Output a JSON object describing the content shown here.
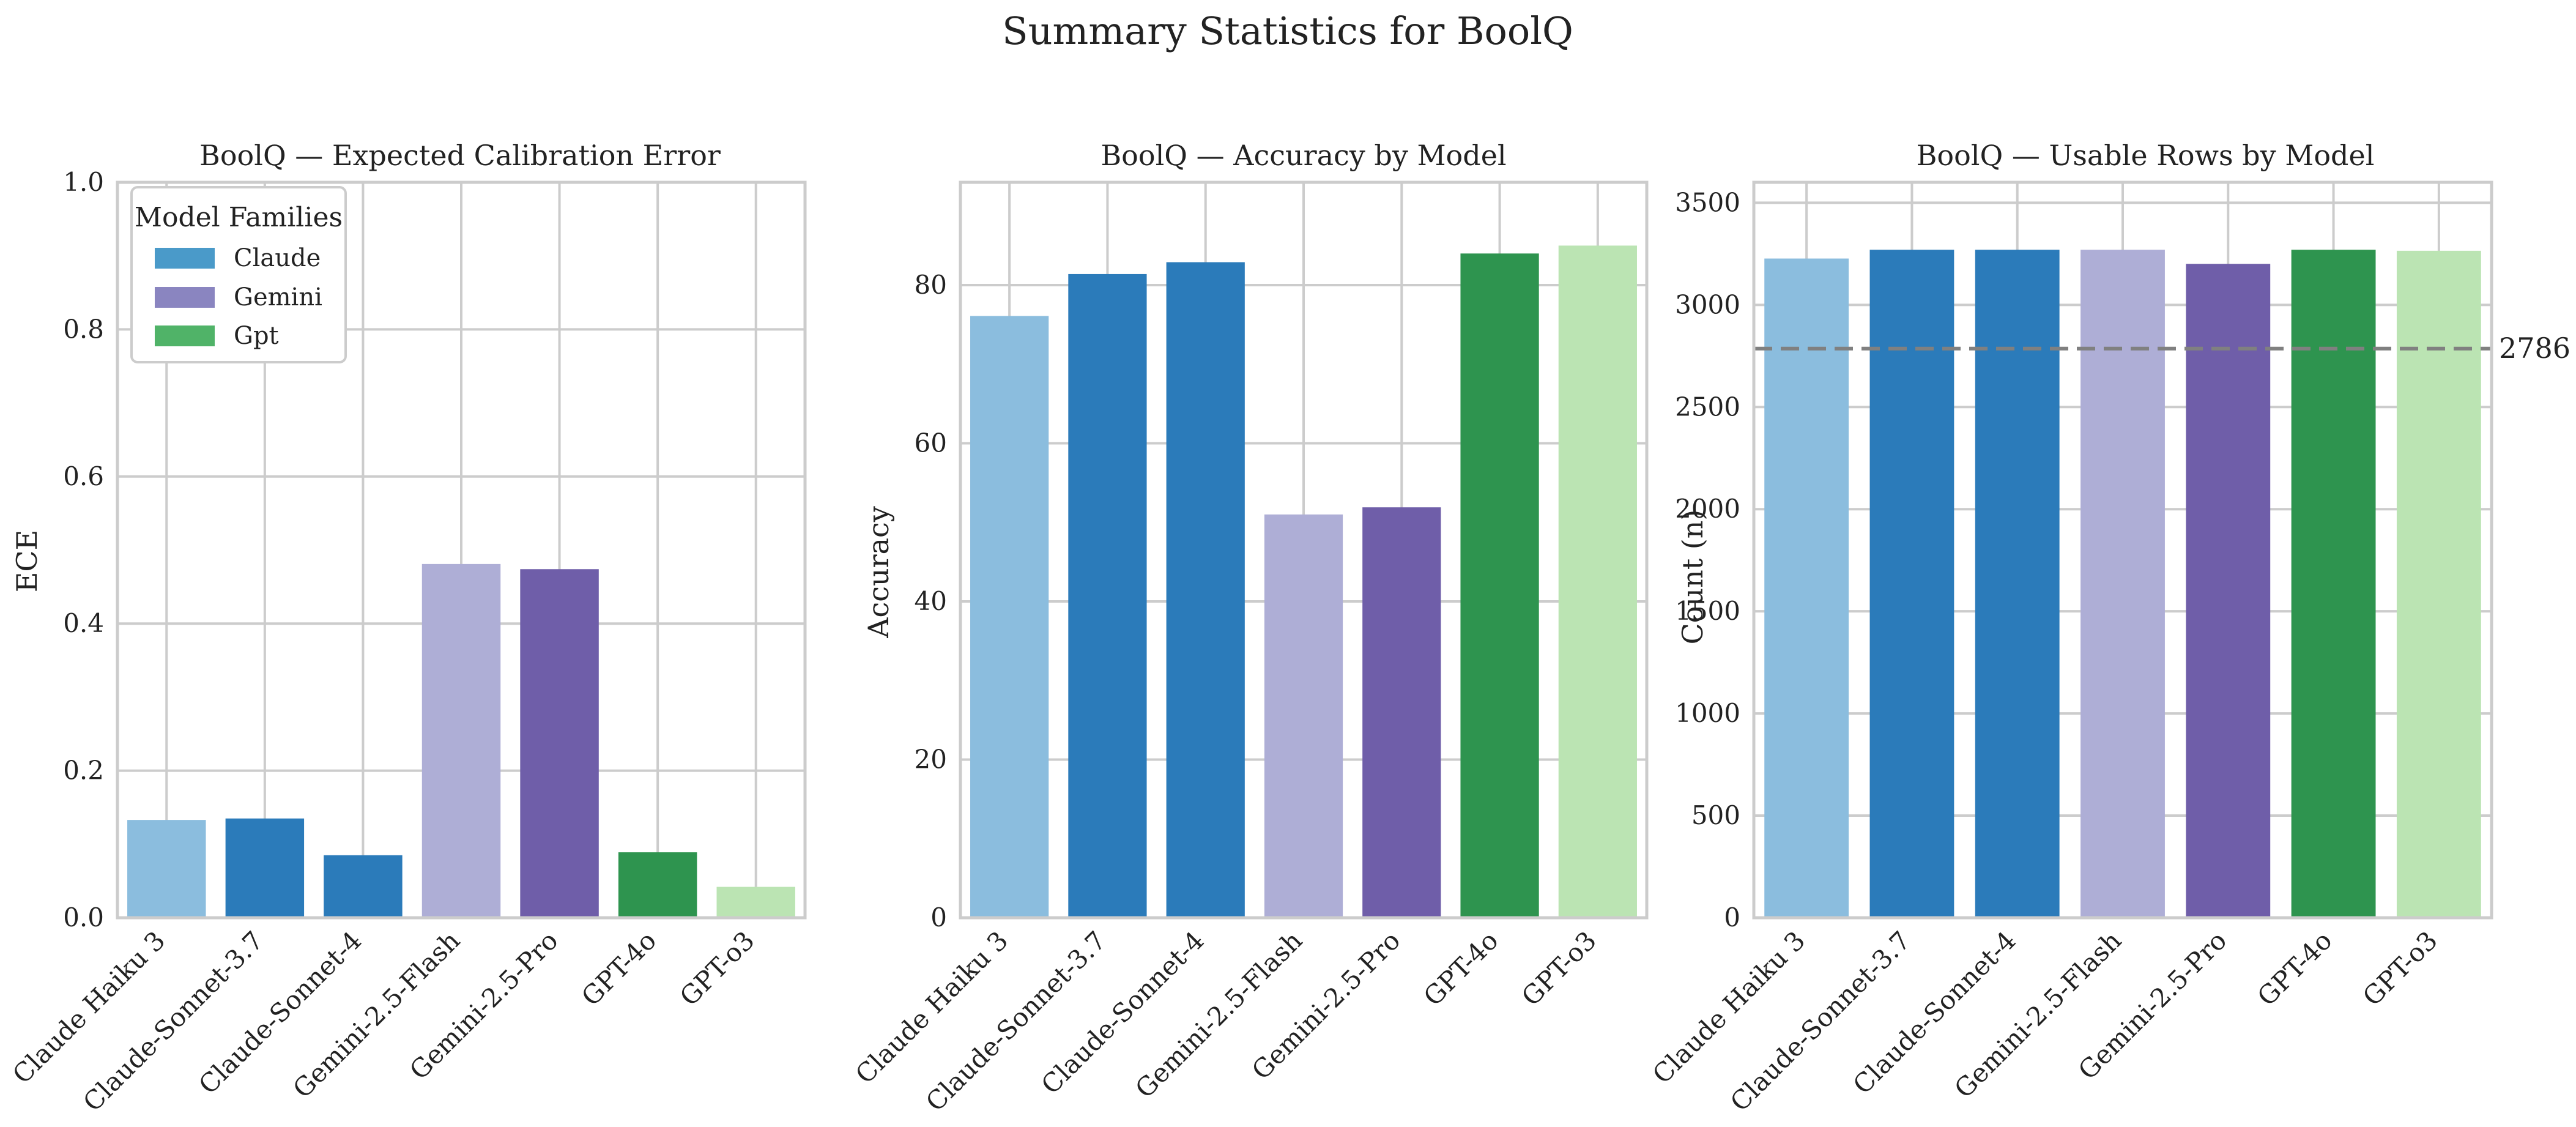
{
  "figure": {
    "title": "Summary Statistics for BoolQ"
  },
  "colors": {
    "claude_light": "#8bbdde",
    "claude_dark": "#2b7bba",
    "gemini_light": "#aeaed6",
    "gemini_dark": "#6f5ea9",
    "gpt_dark": "#2e944f",
    "gpt_light": "#bbe4b3",
    "grid": "#cccccc",
    "ref_line": "#808080"
  },
  "legend": {
    "title": "Model Families",
    "items": [
      {
        "label": "Claude",
        "color": "#4a9ac9"
      },
      {
        "label": "Gemini",
        "color": "#8a85c0"
      },
      {
        "label": "Gpt",
        "color": "#50b368"
      }
    ]
  },
  "chart_data": [
    {
      "type": "bar",
      "title": "BoolQ — Expected Calibration Error",
      "xlabel": "",
      "ylabel": "ECE",
      "categories": [
        "Claude Haiku 3",
        "Claude-Sonnet-3.7",
        "Claude-Sonnet-4",
        "Gemini-2.5-Flash",
        "Gemini-2.5-Pro",
        "GPT-4o",
        "GPT-o3"
      ],
      "values": [
        0.133,
        0.135,
        0.085,
        0.481,
        0.474,
        0.089,
        0.042
      ],
      "colors": [
        "#8bbdde",
        "#2b7bba",
        "#2b7bba",
        "#aeaed6",
        "#6f5ea9",
        "#2e944f",
        "#bbe4b3"
      ],
      "ylim": [
        0,
        1.0
      ],
      "yticks": [
        0.0,
        0.2,
        0.4,
        0.6,
        0.8,
        1.0
      ],
      "ytick_labels": [
        "0.0",
        "0.2",
        "0.4",
        "0.6",
        "0.8",
        "1.0"
      ],
      "grid": true,
      "legend": "top-left"
    },
    {
      "type": "bar",
      "title": "BoolQ — Accuracy by Model",
      "xlabel": "",
      "ylabel": "Accuracy",
      "categories": [
        "Claude Haiku 3",
        "Claude-Sonnet-3.7",
        "Claude-Sonnet-4",
        "Gemini-2.5-Flash",
        "Gemini-2.5-Pro",
        "GPT-4o",
        "GPT-o3"
      ],
      "values": [
        76.1,
        81.4,
        82.9,
        51.0,
        51.9,
        84.0,
        85.0
      ],
      "colors": [
        "#8bbdde",
        "#2b7bba",
        "#2b7bba",
        "#aeaed6",
        "#6f5ea9",
        "#2e944f",
        "#bbe4b3"
      ],
      "ylim": [
        0,
        93
      ],
      "yticks": [
        0,
        20,
        40,
        60,
        80
      ],
      "ytick_labels": [
        "0",
        "20",
        "40",
        "60",
        "80"
      ],
      "grid": true
    },
    {
      "type": "bar",
      "title": "BoolQ — Usable Rows by Model",
      "xlabel": "",
      "ylabel": "Count (n)",
      "categories": [
        "Claude Haiku 3",
        "Claude-Sonnet-3.7",
        "Claude-Sonnet-4",
        "Gemini-2.5-Flash",
        "Gemini-2.5-Pro",
        "GPT-4o",
        "GPT-o3"
      ],
      "values": [
        3227,
        3270,
        3270,
        3270,
        3201,
        3270,
        3265
      ],
      "colors": [
        "#8bbdde",
        "#2b7bba",
        "#2b7bba",
        "#aeaed6",
        "#6f5ea9",
        "#2e944f",
        "#bbe4b3"
      ],
      "ylim": [
        0,
        3600
      ],
      "yticks": [
        0,
        500,
        1000,
        1500,
        2000,
        2500,
        3000,
        3500
      ],
      "ytick_labels": [
        "0",
        "500",
        "1000",
        "1500",
        "2000",
        "2500",
        "3000",
        "3500"
      ],
      "grid": true,
      "reference_line": {
        "value": 2786,
        "label": "2786",
        "style": "dashed"
      }
    }
  ]
}
